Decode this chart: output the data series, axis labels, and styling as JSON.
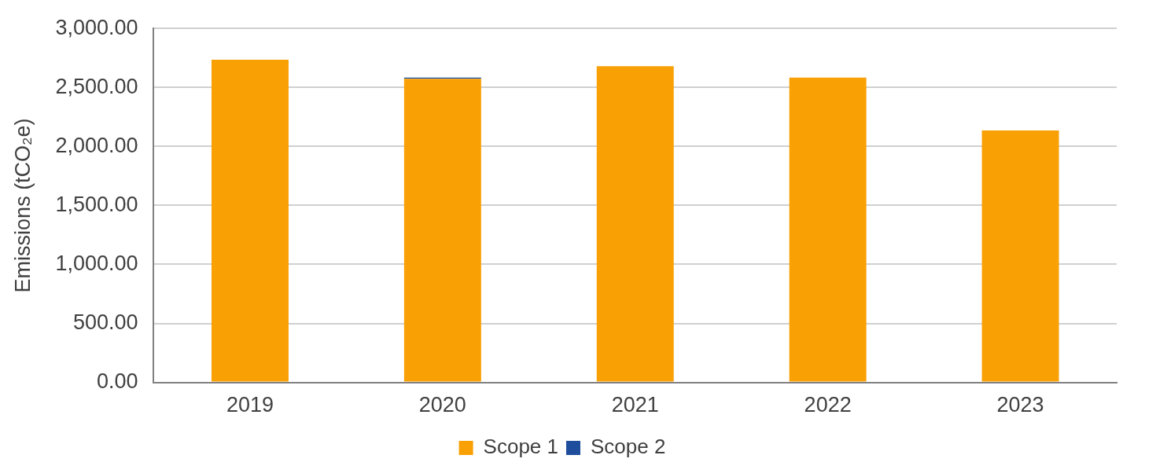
{
  "chart_data": {
    "type": "bar",
    "stacked": true,
    "ylabel": "Emissions (tCO₂e)",
    "categories": [
      "2019",
      "2020",
      "2021",
      "2022",
      "2023"
    ],
    "series": [
      {
        "name": "Scope 1",
        "color": "#f9a004",
        "values": [
          2735,
          2573,
          2680,
          2584,
          2135
        ]
      },
      {
        "name": "Scope 2",
        "color": "#1f4e9c",
        "values": [
          0,
          10,
          0,
          0,
          0
        ]
      }
    ],
    "ylim": [
      0,
      3000
    ],
    "yticks": [
      {
        "value": 0,
        "label": "0.00"
      },
      {
        "value": 500,
        "label": "500.00"
      },
      {
        "value": 1000,
        "label": "1,000.00"
      },
      {
        "value": 1500,
        "label": "1,500.00"
      },
      {
        "value": 2000,
        "label": "2,000.00"
      },
      {
        "value": 2500,
        "label": "2,500.00"
      },
      {
        "value": 3000,
        "label": "3,000.00"
      }
    ],
    "grid": "y",
    "legend": "bottom"
  }
}
